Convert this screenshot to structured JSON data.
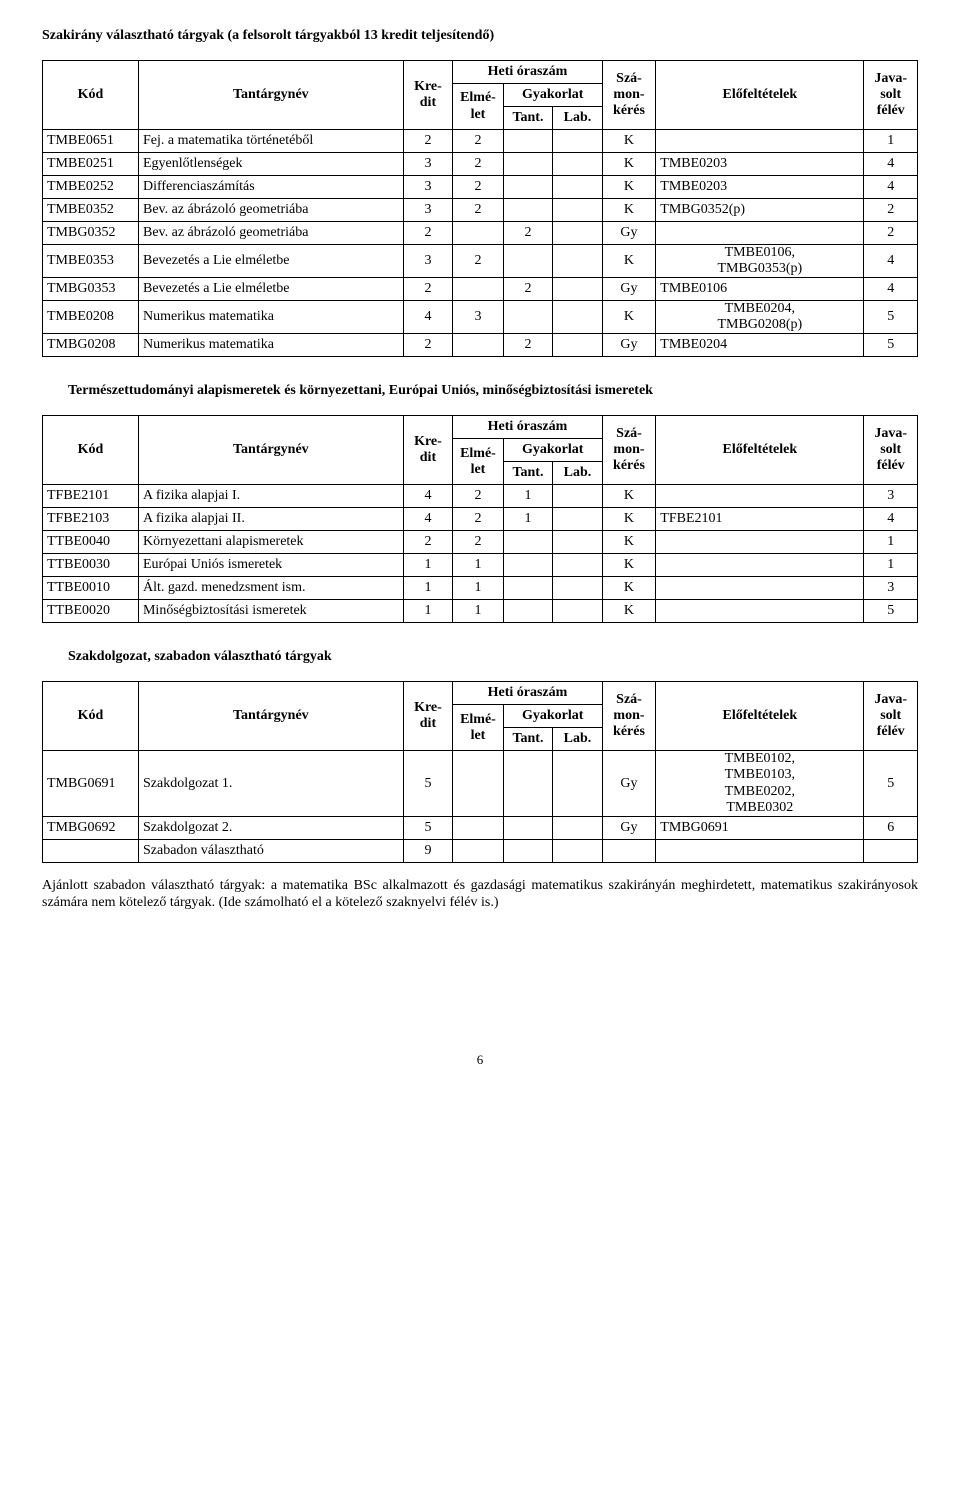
{
  "section1": {
    "title": "Szakirány választható tárgyak (a felsorolt tárgyakból 13 kredit teljesítendő)",
    "header": {
      "kod": "Kód",
      "nev": "Tantárgynév",
      "kredit": "Kre-dit",
      "heti": "Heti óraszám",
      "elmelet": "Elmé-let",
      "gyakorlat": "Gyakorlat",
      "tant": "Tant.",
      "lab": "Lab.",
      "szamon": "Szá-mon-kérés",
      "elofelt": "Előfeltételek",
      "javasolt": "Java-solt félév"
    },
    "rows": [
      {
        "kod": "TMBE0651",
        "nev": "Fej. a matematika történetéből",
        "kre": "2",
        "elm": "2",
        "tant": "",
        "lab": "",
        "szam": "K",
        "elo": "",
        "jav": "1"
      },
      {
        "kod": "TMBE0251",
        "nev": "Egyenlőtlenségek",
        "kre": "3",
        "elm": "2",
        "tant": "",
        "lab": "",
        "szam": "K",
        "elo": "TMBE0203",
        "jav": "4"
      },
      {
        "kod": "TMBE0252",
        "nev": "Differenciaszámítás",
        "kre": "3",
        "elm": "2",
        "tant": "",
        "lab": "",
        "szam": "K",
        "elo": "TMBE0203",
        "jav": "4"
      },
      {
        "kod": "TMBE0352",
        "nev": "Bev. az ábrázoló geometriába",
        "kre": "3",
        "elm": "2",
        "tant": "",
        "lab": "",
        "szam": "K",
        "elo": "TMBG0352(p)",
        "jav": "2"
      },
      {
        "kod": "TMBG0352",
        "nev": "Bev. az ábrázoló geometriába",
        "kre": "2",
        "elm": "",
        "tant": "2",
        "lab": "",
        "szam": "Gy",
        "elo": "",
        "jav": "2"
      },
      {
        "kod": "TMBE0353",
        "nev": "Bevezetés a Lie elméletbe",
        "kre": "3",
        "elm": "2",
        "tant": "",
        "lab": "",
        "szam": "K",
        "elo": "TMBE0106, TMBG0353(p)",
        "eloMulti": true,
        "jav": "4"
      },
      {
        "kod": "TMBG0353",
        "nev": "Bevezetés a Lie elméletbe",
        "kre": "2",
        "elm": "",
        "tant": "2",
        "lab": "",
        "szam": "Gy",
        "elo": "TMBE0106",
        "jav": "4"
      },
      {
        "kod": "TMBE0208",
        "nev": "Numerikus matematika",
        "kre": "4",
        "elm": "3",
        "tant": "",
        "lab": "",
        "szam": "K",
        "elo": "TMBE0204, TMBG0208(p)",
        "eloMulti": true,
        "jav": "5"
      },
      {
        "kod": "TMBG0208",
        "nev": "Numerikus matematika",
        "kre": "2",
        "elm": "",
        "tant": "2",
        "lab": "",
        "szam": "Gy",
        "elo": "TMBE0204",
        "jav": "5"
      }
    ]
  },
  "section2": {
    "title": "Természettudományi alapismeretek és környezettani, Európai Uniós, minőségbiztosítási ismeretek",
    "rows": [
      {
        "kod": "TFBE2101",
        "nev": "A fizika alapjai I.",
        "kre": "4",
        "elm": "2",
        "tant": "1",
        "lab": "",
        "szam": "K",
        "elo": "",
        "jav": "3"
      },
      {
        "kod": "TFBE2103",
        "nev": "A fizika alapjai II.",
        "kre": "4",
        "elm": "2",
        "tant": "1",
        "lab": "",
        "szam": "K",
        "elo": "TFBE2101",
        "jav": "4"
      },
      {
        "kod": "TTBE0040",
        "nev": "Környezettani alapismeretek",
        "kre": "2",
        "elm": "2",
        "tant": "",
        "lab": "",
        "szam": "K",
        "elo": "",
        "jav": "1"
      },
      {
        "kod": "TTBE0030",
        "nev": "Európai Uniós ismeretek",
        "kre": "1",
        "elm": "1",
        "tant": "",
        "lab": "",
        "szam": "K",
        "elo": "",
        "jav": "1"
      },
      {
        "kod": "TTBE0010",
        "nev": "Ált. gazd. menedzsment ism.",
        "kre": "1",
        "elm": "1",
        "tant": "",
        "lab": "",
        "szam": "K",
        "elo": "",
        "jav": "3"
      },
      {
        "kod": "TTBE0020",
        "nev": "Minőségbiztosítási ismeretek",
        "kre": "1",
        "elm": "1",
        "tant": "",
        "lab": "",
        "szam": "K",
        "elo": "",
        "jav": "5"
      }
    ]
  },
  "section3": {
    "title": "Szakdolgozat, szabadon választható tárgyak",
    "rows": [
      {
        "kod": "TMBG0691",
        "nev": "Szakdolgozat 1.",
        "kre": "5",
        "elm": "",
        "tant": "",
        "lab": "",
        "szam": "Gy",
        "elo": "TMBE0102, TMBE0103, TMBE0202, TMBE0302",
        "eloMulti": true,
        "jav": "5"
      },
      {
        "kod": "TMBG0692",
        "nev": "Szakdolgozat 2.",
        "kre": "5",
        "elm": "",
        "tant": "",
        "lab": "",
        "szam": "Gy",
        "elo": "TMBG0691",
        "jav": "6"
      },
      {
        "kod": "",
        "nev": "Szabadon választható",
        "kre": "9",
        "elm": "",
        "tant": "",
        "lab": "",
        "szam": "",
        "elo": "",
        "jav": ""
      }
    ]
  },
  "footerNote": "Ajánlott szabadon választható tárgyak: a matematika BSc alkalmazott és gazdasági matematikus szakirányán meghirdetett, matematikus szakirányosok számára nem kötelező tárgyak. (Ide számolható el a kötelező szaknyelvi félév is.)",
  "pageNumber": "6"
}
